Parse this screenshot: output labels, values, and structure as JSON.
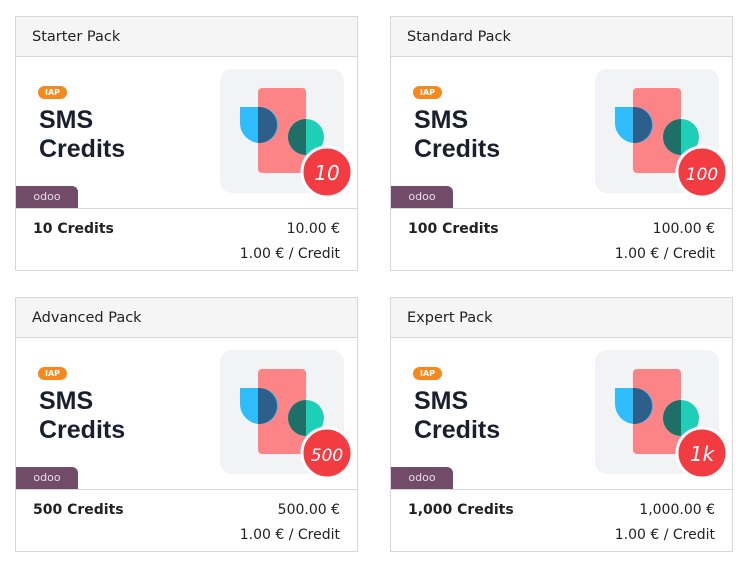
{
  "cards": [
    {
      "title": "Starter Pack",
      "badge": "IAP",
      "product_line1": "SMS",
      "product_line2": "Credits",
      "brand": "odoo",
      "icon_badge": "10",
      "credits": "10 Credits",
      "price": "10.00 €",
      "unit_price": "1.00 € / Credit"
    },
    {
      "title": "Standard Pack",
      "badge": "IAP",
      "product_line1": "SMS",
      "product_line2": "Credits",
      "brand": "odoo",
      "icon_badge": "100",
      "credits": "100 Credits",
      "price": "100.00 €",
      "unit_price": "1.00 € / Credit"
    },
    {
      "title": "Advanced Pack",
      "badge": "IAP",
      "product_line1": "SMS",
      "product_line2": "Credits",
      "brand": "odoo",
      "icon_badge": "500",
      "credits": "500 Credits",
      "price": "500.00 €",
      "unit_price": "1.00 € / Credit"
    },
    {
      "title": "Expert Pack",
      "badge": "IAP",
      "product_line1": "SMS",
      "product_line2": "Credits",
      "brand": "odoo",
      "icon_badge": "1k",
      "credits": "1,000 Credits",
      "price": "1,000.00 €",
      "unit_price": "1.00 € / Credit"
    }
  ]
}
